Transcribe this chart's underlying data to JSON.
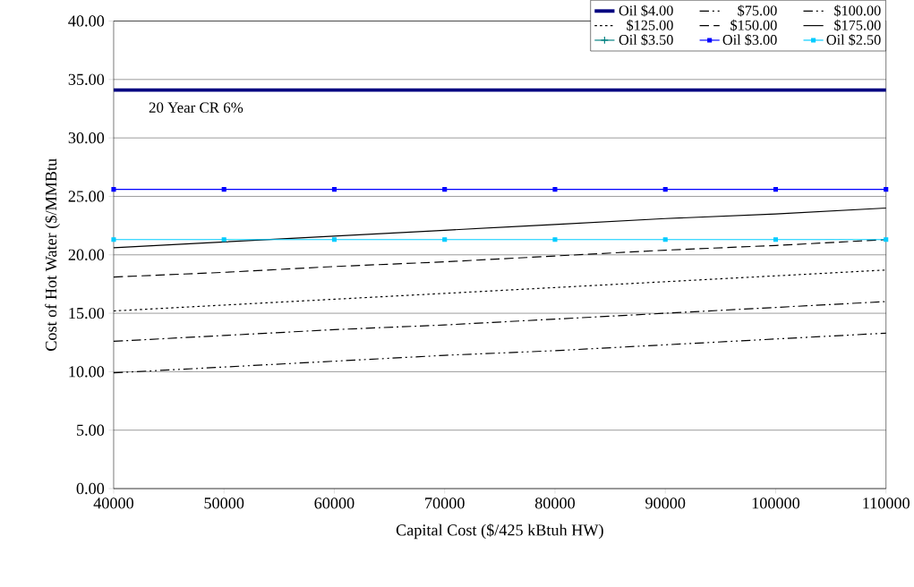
{
  "chart_data": {
    "type": "line",
    "xlabel": "Capital Cost ($/425 kBtuh HW)",
    "ylabel": "Cost of Hot Water ($/MMBtu",
    "x": [
      40000,
      50000,
      60000,
      70000,
      80000,
      90000,
      100000,
      110000
    ],
    "series": [
      {
        "name": "Oil $4.00",
        "color": "#000080",
        "line_style": "solid",
        "marker": "none",
        "values": [
          34.1,
          34.1,
          34.1,
          34.1,
          34.1,
          34.1,
          34.1,
          34.1
        ]
      },
      {
        "name": "$75.00",
        "color": "#000000",
        "line_style": "dashdotdotted",
        "marker": "none",
        "values": [
          9.9,
          10.4,
          10.9,
          11.4,
          11.8,
          12.3,
          12.8,
          13.3
        ]
      },
      {
        "name": "$100.00",
        "color": "#000000",
        "line_style": "dashdotted",
        "marker": "none",
        "values": [
          12.6,
          13.1,
          13.6,
          14.0,
          14.5,
          15.0,
          15.5,
          16.0
        ]
      },
      {
        "name": "$125.00",
        "color": "#000000",
        "line_style": "dotted",
        "marker": "none",
        "values": [
          15.2,
          15.7,
          16.2,
          16.7,
          17.2,
          17.7,
          18.2,
          18.7
        ]
      },
      {
        "name": "$150.00",
        "color": "#000000",
        "line_style": "dashed",
        "marker": "none",
        "values": [
          18.1,
          18.5,
          19.0,
          19.4,
          19.9,
          20.4,
          20.8,
          21.3
        ]
      },
      {
        "name": "$175.00",
        "color": "#000000",
        "line_style": "solid",
        "marker": "none",
        "values": [
          20.6,
          21.1,
          21.6,
          22.1,
          22.6,
          23.1,
          23.5,
          24.0
        ]
      },
      {
        "name": "Oil $3.50",
        "color": "#008080",
        "line_style": "solid",
        "marker": "cross",
        "values": [
          null,
          null,
          null,
          null,
          null,
          null,
          null,
          null
        ]
      },
      {
        "name": "Oil $3.00",
        "color": "#0000ff",
        "line_style": "solid",
        "marker": "square",
        "values": [
          25.6,
          25.6,
          25.6,
          25.6,
          25.6,
          25.6,
          25.6,
          25.6
        ]
      },
      {
        "name": "Oil $2.50",
        "color": "#00ccff",
        "line_style": "solid",
        "marker": "square",
        "values": [
          21.3,
          21.3,
          21.3,
          21.3,
          21.3,
          21.3,
          21.3,
          21.3
        ]
      }
    ],
    "annotations": [
      "20 Year CR 6%"
    ],
    "xlim": [
      40000,
      110000
    ],
    "xticks": [
      40000,
      50000,
      60000,
      70000,
      80000,
      90000,
      100000,
      110000
    ],
    "ylim": [
      0,
      40
    ],
    "yticks": [
      {
        "value": 0,
        "label": "0.00"
      },
      {
        "value": 5,
        "label": "5.00"
      },
      {
        "value": 10,
        "label": "10.00"
      },
      {
        "value": 15,
        "label": "15.00"
      },
      {
        "value": 20,
        "label": "20.00"
      },
      {
        "value": 25,
        "label": "25.00"
      },
      {
        "value": 30,
        "label": "30.00"
      },
      {
        "value": 35,
        "label": "35.00"
      },
      {
        "value": 40,
        "label": "40.00"
      }
    ],
    "grid": "y",
    "legend": "top right"
  }
}
